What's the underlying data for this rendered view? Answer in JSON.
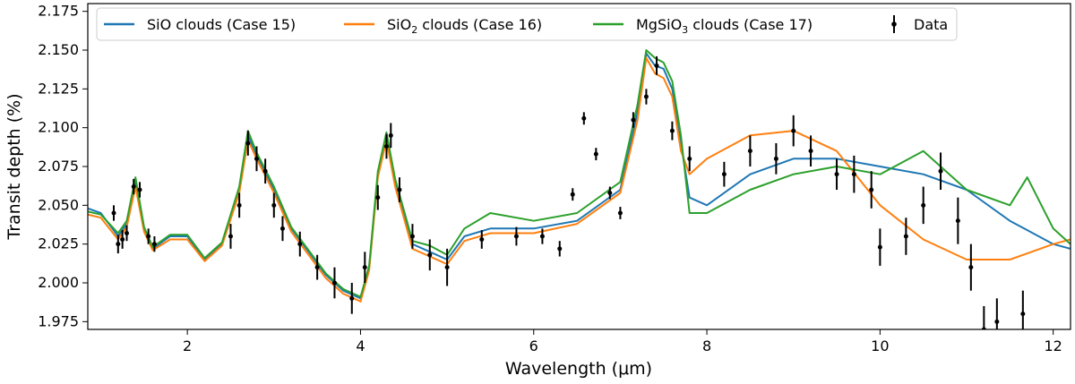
{
  "chart_data": {
    "type": "line",
    "xlabel": "Wavelength (μm)",
    "ylabel": "Transit depth (%)",
    "xlim": [
      0.85,
      12.2
    ],
    "ylim": [
      1.97,
      2.18
    ],
    "xticks": [
      2,
      4,
      6,
      8,
      10,
      12
    ],
    "yticks": [
      1.975,
      2.0,
      2.025,
      2.05,
      2.075,
      2.1,
      2.125,
      2.15,
      2.175
    ],
    "xtick_labels": [
      "2",
      "4",
      "6",
      "8",
      "10",
      "12"
    ],
    "ytick_labels": [
      "1.975",
      "2.000",
      "2.025",
      "2.050",
      "2.075",
      "2.100",
      "2.125",
      "2.150",
      "2.175"
    ],
    "legend_position": "top",
    "series": [
      {
        "name": "SiO clouds (Case 15)",
        "legend_main": "SiO clouds (Case 15)",
        "color": "#1f77b4",
        "x": [
          0.85,
          1.0,
          1.2,
          1.3,
          1.4,
          1.5,
          1.6,
          1.8,
          2.0,
          2.2,
          2.4,
          2.6,
          2.7,
          2.8,
          3.0,
          3.2,
          3.4,
          3.6,
          3.8,
          4.0,
          4.1,
          4.2,
          4.3,
          4.4,
          4.6,
          4.8,
          5.0,
          5.2,
          5.5,
          6.0,
          6.5,
          7.0,
          7.2,
          7.3,
          7.4,
          7.5,
          7.6,
          7.7,
          7.8,
          8.0,
          8.5,
          9.0,
          9.5,
          10.0,
          10.5,
          11.0,
          11.5,
          12.0,
          12.2
        ],
        "y": [
          2.048,
          2.045,
          2.03,
          2.038,
          2.065,
          2.035,
          2.022,
          2.03,
          2.03,
          2.015,
          2.025,
          2.06,
          2.095,
          2.082,
          2.06,
          2.035,
          2.02,
          2.005,
          1.995,
          1.99,
          2.01,
          2.07,
          2.095,
          2.065,
          2.025,
          2.02,
          2.015,
          2.03,
          2.035,
          2.035,
          2.04,
          2.06,
          2.11,
          2.148,
          2.14,
          2.138,
          2.125,
          2.09,
          2.055,
          2.05,
          2.07,
          2.08,
          2.08,
          2.075,
          2.07,
          2.06,
          2.04,
          2.025,
          2.022
        ]
      },
      {
        "name": "SiO2 clouds (Case 16)",
        "legend_main": "SiO",
        "legend_sub": "2",
        "legend_rest": " clouds (Case 16)",
        "color": "#ff7f0e",
        "x": [
          0.85,
          1.0,
          1.2,
          1.3,
          1.4,
          1.5,
          1.6,
          1.8,
          2.0,
          2.2,
          2.4,
          2.6,
          2.7,
          2.8,
          3.0,
          3.2,
          3.4,
          3.6,
          3.8,
          4.0,
          4.1,
          4.2,
          4.3,
          4.4,
          4.6,
          4.8,
          5.0,
          5.2,
          5.5,
          6.0,
          6.5,
          7.0,
          7.2,
          7.3,
          7.4,
          7.5,
          7.6,
          7.7,
          7.8,
          8.0,
          8.5,
          9.0,
          9.5,
          10.0,
          10.5,
          11.0,
          11.5,
          12.0,
          12.2
        ],
        "y": [
          2.044,
          2.042,
          2.028,
          2.036,
          2.062,
          2.033,
          2.021,
          2.028,
          2.028,
          2.014,
          2.024,
          2.058,
          2.092,
          2.08,
          2.058,
          2.033,
          2.018,
          2.003,
          1.993,
          1.988,
          2.008,
          2.068,
          2.092,
          2.062,
          2.022,
          2.017,
          2.012,
          2.027,
          2.032,
          2.032,
          2.038,
          2.058,
          2.105,
          2.145,
          2.135,
          2.132,
          2.12,
          2.085,
          2.07,
          2.08,
          2.095,
          2.098,
          2.085,
          2.05,
          2.028,
          2.015,
          2.015,
          2.025,
          2.028
        ]
      },
      {
        "name": "MgSiO3 clouds (Case 17)",
        "legend_main": "MgSiO",
        "legend_sub": "3",
        "legend_rest": " clouds (Case 17)",
        "color": "#2ca02c",
        "x": [
          0.85,
          1.0,
          1.2,
          1.3,
          1.4,
          1.5,
          1.6,
          1.8,
          2.0,
          2.2,
          2.4,
          2.6,
          2.7,
          2.8,
          3.0,
          3.2,
          3.4,
          3.6,
          3.8,
          4.0,
          4.1,
          4.2,
          4.3,
          4.4,
          4.6,
          4.8,
          5.0,
          5.2,
          5.5,
          6.0,
          6.5,
          7.0,
          7.2,
          7.3,
          7.4,
          7.5,
          7.6,
          7.7,
          7.8,
          8.0,
          8.5,
          9.0,
          9.5,
          10.0,
          10.5,
          11.0,
          11.5,
          11.7,
          12.0,
          12.2
        ],
        "y": [
          2.046,
          2.044,
          2.032,
          2.04,
          2.068,
          2.036,
          2.023,
          2.031,
          2.031,
          2.016,
          2.026,
          2.062,
          2.098,
          2.084,
          2.062,
          2.036,
          2.021,
          2.006,
          1.996,
          1.991,
          2.011,
          2.072,
          2.097,
          2.067,
          2.027,
          2.024,
          2.018,
          2.035,
          2.045,
          2.04,
          2.045,
          2.065,
          2.115,
          2.15,
          2.145,
          2.142,
          2.13,
          2.095,
          2.045,
          2.045,
          2.06,
          2.07,
          2.075,
          2.07,
          2.085,
          2.06,
          2.05,
          2.068,
          2.035,
          2.025
        ]
      }
    ],
    "data": {
      "name": "Data",
      "color": "#000000",
      "points": [
        {
          "x": 1.15,
          "y": 2.045,
          "err": 0.005
        },
        {
          "x": 1.2,
          "y": 2.025,
          "err": 0.006
        },
        {
          "x": 1.25,
          "y": 2.028,
          "err": 0.006
        },
        {
          "x": 1.3,
          "y": 2.032,
          "err": 0.005
        },
        {
          "x": 1.38,
          "y": 2.062,
          "err": 0.005
        },
        {
          "x": 1.45,
          "y": 2.06,
          "err": 0.005
        },
        {
          "x": 1.55,
          "y": 2.03,
          "err": 0.005
        },
        {
          "x": 1.62,
          "y": 2.025,
          "err": 0.005
        },
        {
          "x": 2.5,
          "y": 2.03,
          "err": 0.008
        },
        {
          "x": 2.6,
          "y": 2.05,
          "err": 0.008
        },
        {
          "x": 2.7,
          "y": 2.09,
          "err": 0.008
        },
        {
          "x": 2.8,
          "y": 2.08,
          "err": 0.008
        },
        {
          "x": 2.9,
          "y": 2.072,
          "err": 0.008
        },
        {
          "x": 3.0,
          "y": 2.05,
          "err": 0.008
        },
        {
          "x": 3.1,
          "y": 2.035,
          "err": 0.008
        },
        {
          "x": 3.3,
          "y": 2.025,
          "err": 0.008
        },
        {
          "x": 3.5,
          "y": 2.01,
          "err": 0.008
        },
        {
          "x": 3.7,
          "y": 2.0,
          "err": 0.01
        },
        {
          "x": 3.9,
          "y": 1.99,
          "err": 0.01
        },
        {
          "x": 4.05,
          "y": 2.01,
          "err": 0.01
        },
        {
          "x": 4.2,
          "y": 2.055,
          "err": 0.008
        },
        {
          "x": 4.3,
          "y": 2.088,
          "err": 0.008
        },
        {
          "x": 4.35,
          "y": 2.095,
          "err": 0.008
        },
        {
          "x": 4.45,
          "y": 2.06,
          "err": 0.008
        },
        {
          "x": 4.6,
          "y": 2.03,
          "err": 0.008
        },
        {
          "x": 4.8,
          "y": 2.018,
          "err": 0.01
        },
        {
          "x": 5.0,
          "y": 2.01,
          "err": 0.012
        },
        {
          "x": 5.4,
          "y": 2.028,
          "err": 0.006
        },
        {
          "x": 5.8,
          "y": 2.03,
          "err": 0.006
        },
        {
          "x": 6.1,
          "y": 2.03,
          "err": 0.005
        },
        {
          "x": 6.3,
          "y": 2.022,
          "err": 0.005
        },
        {
          "x": 6.45,
          "y": 2.057,
          "err": 0.004
        },
        {
          "x": 6.58,
          "y": 2.106,
          "err": 0.004
        },
        {
          "x": 6.72,
          "y": 2.083,
          "err": 0.004
        },
        {
          "x": 6.88,
          "y": 2.058,
          "err": 0.004
        },
        {
          "x": 7.0,
          "y": 2.045,
          "err": 0.004
        },
        {
          "x": 7.15,
          "y": 2.105,
          "err": 0.005
        },
        {
          "x": 7.3,
          "y": 2.12,
          "err": 0.005
        },
        {
          "x": 7.42,
          "y": 2.14,
          "err": 0.006
        },
        {
          "x": 7.6,
          "y": 2.098,
          "err": 0.006
        },
        {
          "x": 7.8,
          "y": 2.08,
          "err": 0.008
        },
        {
          "x": 8.2,
          "y": 2.07,
          "err": 0.008
        },
        {
          "x": 8.5,
          "y": 2.085,
          "err": 0.01
        },
        {
          "x": 8.8,
          "y": 2.08,
          "err": 0.01
        },
        {
          "x": 9.0,
          "y": 2.098,
          "err": 0.01
        },
        {
          "x": 9.2,
          "y": 2.085,
          "err": 0.01
        },
        {
          "x": 9.5,
          "y": 2.07,
          "err": 0.01
        },
        {
          "x": 9.7,
          "y": 2.07,
          "err": 0.012
        },
        {
          "x": 9.9,
          "y": 2.06,
          "err": 0.012
        },
        {
          "x": 10.0,
          "y": 2.023,
          "err": 0.012
        },
        {
          "x": 10.3,
          "y": 2.03,
          "err": 0.012
        },
        {
          "x": 10.5,
          "y": 2.05,
          "err": 0.012
        },
        {
          "x": 10.7,
          "y": 2.072,
          "err": 0.012
        },
        {
          "x": 10.9,
          "y": 2.04,
          "err": 0.015
        },
        {
          "x": 11.05,
          "y": 2.01,
          "err": 0.015
        },
        {
          "x": 11.2,
          "y": 1.97,
          "err": 0.015
        },
        {
          "x": 11.35,
          "y": 1.975,
          "err": 0.015
        },
        {
          "x": 11.65,
          "y": 1.98,
          "err": 0.015
        }
      ]
    }
  }
}
